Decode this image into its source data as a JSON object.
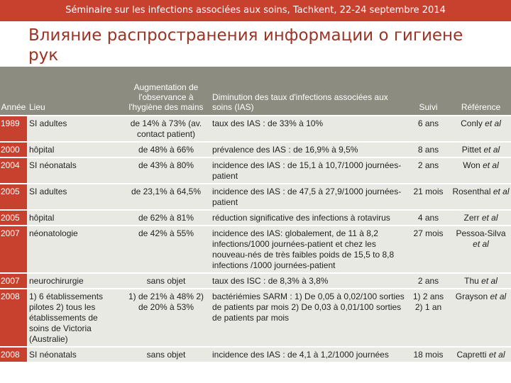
{
  "header_bar": {
    "text": "Séminaire sur les infections associées aux soins, Tachkent, 22-24 septembre 2014"
  },
  "title": "Влияние распространения информации о гигиене рук",
  "table": {
    "headers": {
      "year": "Année",
      "place": "Lieu",
      "observance": "Augmentation de l'observance à l'hygiène des mains",
      "ias": "Diminution des taux d'infections associées aux soins (IAS)",
      "follow": "Suivi",
      "ref": "Référence"
    },
    "rows": [
      {
        "year": "1989",
        "place": "SI adultes",
        "observance": "de 14% à 73% (av. contact patient)",
        "ias": "taux des IAS : de 33% à 10%",
        "follow": "6 ans",
        "ref_name": "Conly",
        "ref_etal": "et al"
      },
      {
        "year": "2000",
        "place": "hôpital",
        "observance": "de 48% à 66%",
        "ias": "prévalence des IAS : de 16,9% à 9,5%",
        "follow": "8 ans",
        "ref_name": "Pittet",
        "ref_etal": "et al"
      },
      {
        "year": "2004",
        "place": "SI néonatals",
        "observance": "de 43% à 80%",
        "ias": "incidence des IAS : de 15,1 à 10,7/1000 journées-patient",
        "follow": "2 ans",
        "ref_name": "Won",
        "ref_etal": "et al"
      },
      {
        "year": "2005",
        "place": "SI adultes",
        "observance": "de 23,1% à 64,5%",
        "ias": "incidence des IAS : de 47,5 à 27,9/1000 journées-patient",
        "follow": "21 mois",
        "ref_name": "Rosenthal",
        "ref_etal": "et al"
      },
      {
        "year": "2005",
        "place": "hôpital",
        "observance": "de 62% à 81%",
        "ias": "réduction significative des infections à rotavirus",
        "follow": "4 ans",
        "ref_name": "Zerr",
        "ref_etal": "et al"
      },
      {
        "year": "2007",
        "place": "néonatologie",
        "observance": "de 42% à 55%",
        "ias": "incidence des IAS: globalement, de 11 à 8,2 infections/1000 journées-patient et chez les nouveau-nés de très faibles poids de 15,5 to 8,8 infections /1000 journées-patient",
        "follow": "27 mois",
        "ref_name": "Pessoa-Silva",
        "ref_etal": "et al"
      },
      {
        "year": "2007",
        "place": "neurochirurgie",
        "observance": "sans objet",
        "ias": "taux des ISC : de 8,3% à 3,8%",
        "follow": "2 ans",
        "ref_name": "Thu",
        "ref_etal": "et al"
      },
      {
        "year": "2008",
        "place": "1) 6 établissements pilotes 2) tous les établissements de soins de Victoria (Australie)",
        "observance": "1) de 21% à 48% 2) de 20% à 53%",
        "ias": "bactériémies SARM : 1) De 0,05 à 0,02/100 sorties de patients par mois 2) De 0,03 à 0,01/100 sorties de patients par mois",
        "follow": "1) 2 ans 2) 1 an",
        "ref_name": "Grayson",
        "ref_etal": "et al"
      },
      {
        "year": "2008",
        "place": "SI néonatals",
        "observance": "sans objet",
        "ias": "incidence des IAS : de 4,1 à 1,2/1000 journées",
        "follow": "18 mois",
        "ref_name": "Capretti",
        "ref_etal": "et al"
      }
    ]
  }
}
